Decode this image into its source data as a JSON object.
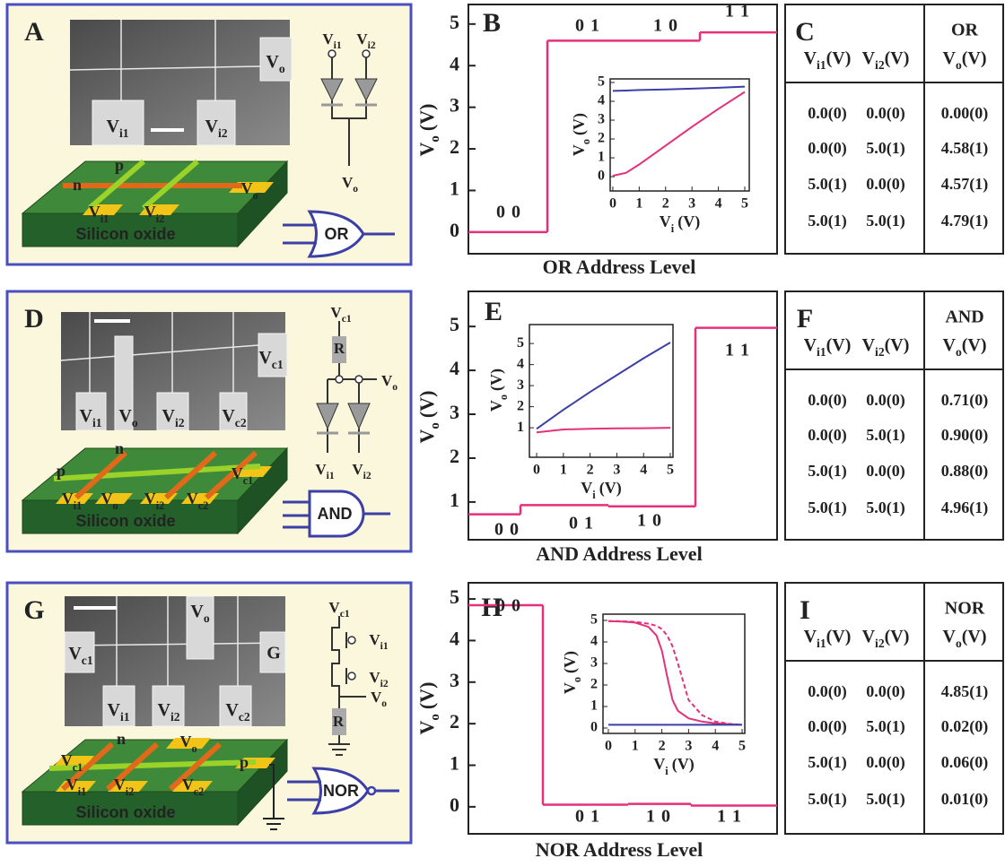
{
  "devices": [
    {
      "letter": "A",
      "sem_labels": [
        [
          "V",
          "o"
        ],
        [
          "V",
          "i1"
        ],
        [
          "V",
          "i2"
        ]
      ],
      "schematic_labels": [
        [
          "V",
          "i1"
        ],
        [
          "V",
          "i2"
        ],
        [
          "V",
          "o"
        ]
      ],
      "device_labels": [
        "p",
        "n",
        [
          "V",
          "o"
        ],
        [
          "V",
          "i1"
        ],
        [
          "V",
          "i2"
        ]
      ],
      "substrate": "Silicon oxide",
      "gate": "OR"
    },
    {
      "letter": "D",
      "sem_labels": [
        [
          "V",
          "c1"
        ],
        [
          "V",
          "i1"
        ],
        [
          "V",
          "o"
        ],
        [
          "V",
          "i2"
        ],
        [
          "V",
          "c2"
        ]
      ],
      "schematic_labels": [
        [
          "V",
          "c1"
        ],
        "R",
        [
          "V",
          "o"
        ],
        [
          "V",
          "i1"
        ],
        [
          "V",
          "i2"
        ]
      ],
      "device_labels": [
        "n",
        "p",
        [
          "V",
          "c1"
        ],
        [
          "V",
          "i1"
        ],
        [
          "V",
          "o"
        ],
        [
          "V",
          "i2"
        ],
        [
          "V",
          "c2"
        ]
      ],
      "substrate": "Silicon oxide",
      "gate": "AND"
    },
    {
      "letter": "G",
      "sem_labels": [
        [
          "V",
          "o"
        ],
        [
          "V",
          "c1"
        ],
        "G",
        [
          "V",
          "i1"
        ],
        [
          "V",
          "i2"
        ],
        [
          "V",
          "c2"
        ]
      ],
      "schematic_labels": [
        [
          "V",
          "c1"
        ],
        [
          "V",
          "i1"
        ],
        [
          "V",
          "i2"
        ],
        [
          "V",
          "o"
        ],
        "R"
      ],
      "device_labels": [
        "n",
        [
          "V",
          "o"
        ],
        [
          "V",
          "c1"
        ],
        "p",
        [
          "V",
          "i1"
        ],
        [
          "V",
          "i2"
        ],
        [
          "V",
          "c2"
        ]
      ],
      "substrate": "Silicon oxide",
      "gate": "NOR"
    }
  ],
  "chart_data": [
    {
      "type": "step",
      "letter": "B",
      "categories": [
        "0 0",
        "0 1",
        "1 0",
        "1 1"
      ],
      "values": [
        0,
        4.6,
        4.6,
        4.8
      ],
      "color": "#e5307a",
      "ylim": [
        -0.52,
        5.47
      ],
      "yticks": [
        0,
        1,
        2,
        3,
        4,
        5
      ],
      "y_label": [
        "V",
        "o",
        "(V)"
      ],
      "x_label": "OR Address Level"
    },
    {
      "type": "line",
      "x": [
        0,
        0.5,
        1,
        2,
        3,
        4,
        5
      ],
      "xlim": [
        -0.1,
        5.17
      ],
      "ylim": [
        -0.76,
        5.19
      ],
      "xticks": [
        0,
        1,
        2,
        3,
        4,
        5
      ],
      "yticks": [
        0,
        1,
        2,
        3,
        4,
        5
      ],
      "x_label": [
        "V",
        "i",
        "(V)"
      ],
      "y_label": [
        "V",
        "o",
        "(V)"
      ],
      "series": [
        {
          "color": "#3b3fa6",
          "values": [
            4.55,
            4.57,
            4.6,
            4.63,
            4.67,
            4.72,
            4.78
          ]
        },
        {
          "color": "#e5307a",
          "values": [
            0.05,
            0.2,
            0.65,
            1.65,
            2.65,
            3.6,
            4.5
          ]
        }
      ]
    },
    {
      "type": "step",
      "letter": "E",
      "categories": [
        "0 0",
        "0 1",
        "1 0",
        "1 1"
      ],
      "values": [
        0.72,
        0.93,
        0.9,
        4.97
      ],
      "color": "#e5307a",
      "ylim": [
        0.14,
        5.8
      ],
      "yticks": [
        1,
        2,
        3,
        4,
        5
      ],
      "y_label": [
        "V",
        "o",
        "(V)"
      ],
      "x_label": "AND Address Level"
    },
    {
      "type": "line",
      "x": [
        0,
        1,
        2,
        3,
        4,
        5
      ],
      "xlim": [
        -0.27,
        5.1
      ],
      "ylim": [
        -0.4,
        5.9
      ],
      "xticks": [
        0,
        1,
        2,
        3,
        4,
        5
      ],
      "yticks": [
        1,
        2,
        3,
        4,
        5
      ],
      "x_label": [
        "V",
        "i",
        "(V)"
      ],
      "y_label": [
        "V",
        "o",
        "(V)"
      ],
      "series": [
        {
          "color": "#3b3fa6",
          "values": [
            0.95,
            1.85,
            2.7,
            3.5,
            4.3,
            5.05
          ]
        },
        {
          "color": "#e5307a",
          "values": [
            0.78,
            0.92,
            0.95,
            0.97,
            0.98,
            1.0
          ]
        }
      ]
    },
    {
      "type": "step",
      "letter": "H",
      "categories": [
        "0 0",
        "0 1",
        "1 0",
        "1 1"
      ],
      "values": [
        4.85,
        0.05,
        0.07,
        0.03
      ],
      "color": "#e5307a",
      "ylim": [
        -0.65,
        5.39
      ],
      "yticks": [
        0,
        1,
        2,
        3,
        4,
        5
      ],
      "y_label": [
        "V",
        "o",
        "(V)"
      ],
      "x_label": "NOR Address Level"
    },
    {
      "type": "line",
      "x": [
        0,
        0.5,
        1,
        1.5,
        1.8,
        2,
        2.2,
        2.4,
        2.6,
        3,
        3.5,
        4,
        4.5,
        5
      ],
      "xlim": [
        -0.2,
        5.1
      ],
      "ylim": [
        -0.25,
        5.29
      ],
      "xticks": [
        0,
        1,
        2,
        3,
        4,
        5
      ],
      "yticks": [
        0,
        1,
        2,
        3,
        4,
        5
      ],
      "x_label": [
        "V",
        "i",
        "(V)"
      ],
      "y_label": [
        "V",
        "o",
        "(V)"
      ],
      "series": [
        {
          "color": "#e5307a",
          "values": [
            4.97,
            4.95,
            4.9,
            4.7,
            4.3,
            3.6,
            2.4,
            1.3,
            0.8,
            0.45,
            0.3,
            0.22,
            0.18,
            0.15
          ]
        },
        {
          "color": "#e5307a",
          "dashed": true,
          "values": [
            4.97,
            4.96,
            4.93,
            4.85,
            4.75,
            4.6,
            4.3,
            3.8,
            3.0,
            1.3,
            0.6,
            0.3,
            0.2,
            0.15
          ]
        },
        {
          "color": "#3b3fa6",
          "values": [
            0.15,
            0.15,
            0.15,
            0.15,
            0.15,
            0.15,
            0.15,
            0.15,
            0.15,
            0.15,
            0.15,
            0.15,
            0.15,
            0.15
          ]
        }
      ]
    }
  ],
  "tables": [
    {
      "letter": "C",
      "gate": "OR",
      "headers": [
        [
          "V",
          "i1",
          "(V)"
        ],
        [
          "V",
          "i2",
          "(V)"
        ],
        [
          "V",
          "o",
          "(V)"
        ]
      ],
      "rows": [
        [
          "0.0(0)",
          "0.0(0)",
          "0.00(0)"
        ],
        [
          "0.0(0)",
          "5.0(1)",
          "4.58(1)"
        ],
        [
          "5.0(1)",
          "0.0(0)",
          "4.57(1)"
        ],
        [
          "5.0(1)",
          "5.0(1)",
          "4.79(1)"
        ]
      ]
    },
    {
      "letter": "F",
      "gate": "AND",
      "headers": [
        [
          "V",
          "i1",
          "(V)"
        ],
        [
          "V",
          "i2",
          "(V)"
        ],
        [
          "V",
          "o",
          "(V)"
        ]
      ],
      "rows": [
        [
          "0.0(0)",
          "0.0(0)",
          "0.71(0)"
        ],
        [
          "0.0(0)",
          "5.0(1)",
          "0.90(0)"
        ],
        [
          "5.0(1)",
          "0.0(0)",
          "0.88(0)"
        ],
        [
          "5.0(1)",
          "5.0(1)",
          "4.96(1)"
        ]
      ]
    },
    {
      "letter": "I",
      "gate": "NOR",
      "headers": [
        [
          "V",
          "i1",
          "(V)"
        ],
        [
          "V",
          "i2",
          "(V)"
        ],
        [
          "V",
          "o",
          "(V)"
        ]
      ],
      "rows": [
        [
          "0.0(0)",
          "0.0(0)",
          "4.85(1)"
        ],
        [
          "0.0(0)",
          "5.0(1)",
          "0.02(0)"
        ],
        [
          "5.0(1)",
          "0.0(0)",
          "0.06(0)"
        ],
        [
          "5.0(1)",
          "5.0(1)",
          "0.01(0)"
        ]
      ]
    }
  ]
}
